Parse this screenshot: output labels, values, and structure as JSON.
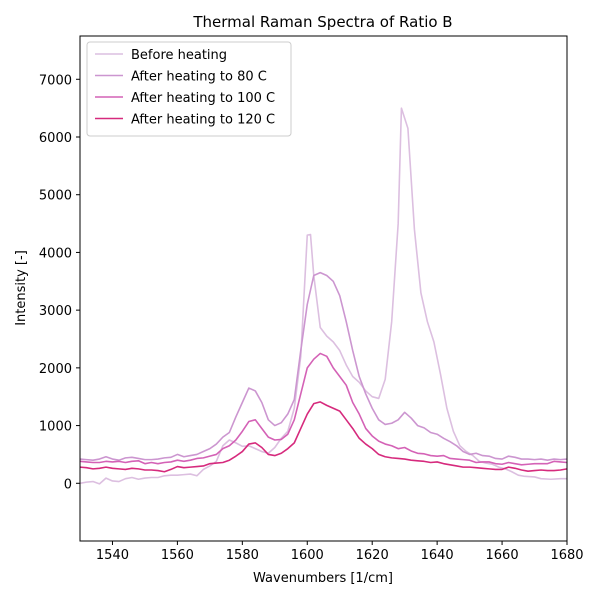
{
  "chart_data": {
    "type": "line",
    "title": "Thermal Raman Spectra of Ratio B",
    "xlabel": "Wavenumbers [1/cm]",
    "ylabel": "Intensity [-]",
    "xlim": [
      1530,
      1680
    ],
    "ylim": [
      -1000,
      7750
    ],
    "xticks": [
      1540,
      1560,
      1580,
      1600,
      1620,
      1640,
      1660,
      1680
    ],
    "yticks": [
      0,
      1000,
      2000,
      3000,
      4000,
      5000,
      6000,
      7000
    ],
    "grid": false,
    "legend_position": "top-left",
    "series": [
      {
        "name": "Before heating",
        "color": "#dcbfe0",
        "points": [
          [
            1530,
            0
          ],
          [
            1532,
            20
          ],
          [
            1534,
            30
          ],
          [
            1536,
            -10
          ],
          [
            1538,
            90
          ],
          [
            1540,
            40
          ],
          [
            1542,
            30
          ],
          [
            1544,
            80
          ],
          [
            1546,
            100
          ],
          [
            1548,
            70
          ],
          [
            1550,
            90
          ],
          [
            1552,
            100
          ],
          [
            1554,
            100
          ],
          [
            1556,
            130
          ],
          [
            1558,
            140
          ],
          [
            1560,
            140
          ],
          [
            1562,
            150
          ],
          [
            1564,
            160
          ],
          [
            1566,
            130
          ],
          [
            1568,
            240
          ],
          [
            1570,
            300
          ],
          [
            1572,
            380
          ],
          [
            1574,
            650
          ],
          [
            1576,
            750
          ],
          [
            1578,
            700
          ],
          [
            1580,
            640
          ],
          [
            1582,
            650
          ],
          [
            1584,
            600
          ],
          [
            1586,
            550
          ],
          [
            1588,
            520
          ],
          [
            1590,
            620
          ],
          [
            1592,
            780
          ],
          [
            1594,
            900
          ],
          [
            1596,
            1300
          ],
          [
            1598,
            2200
          ],
          [
            1600,
            4300
          ],
          [
            1601,
            4310
          ],
          [
            1602,
            3600
          ],
          [
            1604,
            2700
          ],
          [
            1606,
            2550
          ],
          [
            1608,
            2450
          ],
          [
            1610,
            2300
          ],
          [
            1612,
            2050
          ],
          [
            1614,
            1850
          ],
          [
            1616,
            1750
          ],
          [
            1618,
            1600
          ],
          [
            1620,
            1500
          ],
          [
            1622,
            1470
          ],
          [
            1624,
            1800
          ],
          [
            1626,
            2800
          ],
          [
            1628,
            4500
          ],
          [
            1629,
            6500
          ],
          [
            1631,
            6150
          ],
          [
            1633,
            4400
          ],
          [
            1635,
            3300
          ],
          [
            1637,
            2800
          ],
          [
            1639,
            2450
          ],
          [
            1641,
            1900
          ],
          [
            1643,
            1300
          ],
          [
            1645,
            900
          ],
          [
            1647,
            650
          ],
          [
            1649,
            550
          ],
          [
            1651,
            480
          ],
          [
            1653,
            380
          ],
          [
            1655,
            350
          ],
          [
            1657,
            330
          ],
          [
            1659,
            280
          ],
          [
            1661,
            250
          ],
          [
            1663,
            200
          ],
          [
            1665,
            140
          ],
          [
            1667,
            120
          ],
          [
            1670,
            110
          ],
          [
            1672,
            80
          ],
          [
            1675,
            70
          ],
          [
            1678,
            80
          ],
          [
            1680,
            80
          ]
        ]
      },
      {
        "name": "After heating to 80 C",
        "color": "#cc96d0",
        "points": [
          [
            1530,
            420
          ],
          [
            1532,
            410
          ],
          [
            1534,
            400
          ],
          [
            1536,
            420
          ],
          [
            1538,
            460
          ],
          [
            1540,
            420
          ],
          [
            1542,
            400
          ],
          [
            1544,
            440
          ],
          [
            1546,
            450
          ],
          [
            1548,
            430
          ],
          [
            1550,
            410
          ],
          [
            1552,
            410
          ],
          [
            1554,
            420
          ],
          [
            1556,
            440
          ],
          [
            1558,
            450
          ],
          [
            1560,
            500
          ],
          [
            1562,
            460
          ],
          [
            1564,
            480
          ],
          [
            1566,
            500
          ],
          [
            1568,
            550
          ],
          [
            1570,
            600
          ],
          [
            1572,
            680
          ],
          [
            1574,
            800
          ],
          [
            1576,
            880
          ],
          [
            1578,
            1150
          ],
          [
            1580,
            1400
          ],
          [
            1582,
            1650
          ],
          [
            1584,
            1600
          ],
          [
            1586,
            1400
          ],
          [
            1588,
            1100
          ],
          [
            1590,
            1000
          ],
          [
            1592,
            1050
          ],
          [
            1594,
            1200
          ],
          [
            1596,
            1450
          ],
          [
            1598,
            2300
          ],
          [
            1600,
            3100
          ],
          [
            1602,
            3600
          ],
          [
            1604,
            3650
          ],
          [
            1606,
            3600
          ],
          [
            1608,
            3500
          ],
          [
            1610,
            3250
          ],
          [
            1612,
            2800
          ],
          [
            1614,
            2300
          ],
          [
            1616,
            1850
          ],
          [
            1618,
            1550
          ],
          [
            1620,
            1300
          ],
          [
            1622,
            1100
          ],
          [
            1624,
            1020
          ],
          [
            1626,
            1040
          ],
          [
            1628,
            1100
          ],
          [
            1630,
            1230
          ],
          [
            1632,
            1130
          ],
          [
            1634,
            1000
          ],
          [
            1636,
            960
          ],
          [
            1638,
            880
          ],
          [
            1640,
            850
          ],
          [
            1642,
            780
          ],
          [
            1644,
            720
          ],
          [
            1646,
            650
          ],
          [
            1648,
            550
          ],
          [
            1650,
            500
          ],
          [
            1652,
            520
          ],
          [
            1654,
            480
          ],
          [
            1656,
            470
          ],
          [
            1658,
            430
          ],
          [
            1660,
            420
          ],
          [
            1662,
            470
          ],
          [
            1664,
            450
          ],
          [
            1666,
            420
          ],
          [
            1668,
            420
          ],
          [
            1670,
            410
          ],
          [
            1672,
            420
          ],
          [
            1674,
            400
          ],
          [
            1676,
            420
          ],
          [
            1678,
            410
          ],
          [
            1680,
            420
          ]
        ]
      },
      {
        "name": "After heating to 100 C",
        "color": "#d462b6",
        "points": [
          [
            1530,
            380
          ],
          [
            1532,
            370
          ],
          [
            1534,
            360
          ],
          [
            1536,
            360
          ],
          [
            1538,
            380
          ],
          [
            1540,
            370
          ],
          [
            1542,
            380
          ],
          [
            1544,
            360
          ],
          [
            1546,
            380
          ],
          [
            1548,
            390
          ],
          [
            1550,
            340
          ],
          [
            1552,
            360
          ],
          [
            1554,
            340
          ],
          [
            1556,
            360
          ],
          [
            1558,
            370
          ],
          [
            1560,
            400
          ],
          [
            1562,
            380
          ],
          [
            1564,
            400
          ],
          [
            1566,
            430
          ],
          [
            1568,
            440
          ],
          [
            1570,
            470
          ],
          [
            1572,
            500
          ],
          [
            1574,
            600
          ],
          [
            1576,
            650
          ],
          [
            1578,
            750
          ],
          [
            1580,
            900
          ],
          [
            1582,
            1070
          ],
          [
            1584,
            1100
          ],
          [
            1586,
            950
          ],
          [
            1588,
            800
          ],
          [
            1590,
            750
          ],
          [
            1592,
            760
          ],
          [
            1594,
            850
          ],
          [
            1596,
            1100
          ],
          [
            1598,
            1550
          ],
          [
            1600,
            2000
          ],
          [
            1602,
            2150
          ],
          [
            1604,
            2250
          ],
          [
            1606,
            2200
          ],
          [
            1608,
            2000
          ],
          [
            1610,
            1850
          ],
          [
            1612,
            1700
          ],
          [
            1614,
            1400
          ],
          [
            1616,
            1200
          ],
          [
            1618,
            950
          ],
          [
            1620,
            820
          ],
          [
            1622,
            730
          ],
          [
            1624,
            680
          ],
          [
            1626,
            650
          ],
          [
            1628,
            600
          ],
          [
            1630,
            620
          ],
          [
            1632,
            560
          ],
          [
            1634,
            520
          ],
          [
            1636,
            510
          ],
          [
            1638,
            480
          ],
          [
            1640,
            470
          ],
          [
            1642,
            480
          ],
          [
            1644,
            430
          ],
          [
            1646,
            420
          ],
          [
            1648,
            410
          ],
          [
            1650,
            400
          ],
          [
            1652,
            360
          ],
          [
            1654,
            370
          ],
          [
            1656,
            370
          ],
          [
            1658,
            340
          ],
          [
            1660,
            330
          ],
          [
            1662,
            360
          ],
          [
            1664,
            340
          ],
          [
            1666,
            320
          ],
          [
            1668,
            330
          ],
          [
            1670,
            340
          ],
          [
            1672,
            340
          ],
          [
            1674,
            340
          ],
          [
            1676,
            380
          ],
          [
            1678,
            370
          ],
          [
            1680,
            360
          ]
        ]
      },
      {
        "name": "After heating to 120 C",
        "color": "#d62a7d",
        "points": [
          [
            1530,
            280
          ],
          [
            1532,
            270
          ],
          [
            1534,
            250
          ],
          [
            1536,
            260
          ],
          [
            1538,
            280
          ],
          [
            1540,
            260
          ],
          [
            1542,
            250
          ],
          [
            1544,
            240
          ],
          [
            1546,
            260
          ],
          [
            1548,
            250
          ],
          [
            1550,
            230
          ],
          [
            1552,
            230
          ],
          [
            1554,
            220
          ],
          [
            1556,
            200
          ],
          [
            1558,
            240
          ],
          [
            1560,
            290
          ],
          [
            1562,
            270
          ],
          [
            1564,
            280
          ],
          [
            1566,
            290
          ],
          [
            1568,
            300
          ],
          [
            1570,
            340
          ],
          [
            1572,
            350
          ],
          [
            1574,
            360
          ],
          [
            1576,
            400
          ],
          [
            1578,
            470
          ],
          [
            1580,
            550
          ],
          [
            1582,
            680
          ],
          [
            1584,
            700
          ],
          [
            1586,
            620
          ],
          [
            1588,
            500
          ],
          [
            1590,
            480
          ],
          [
            1592,
            520
          ],
          [
            1594,
            600
          ],
          [
            1596,
            700
          ],
          [
            1598,
            950
          ],
          [
            1600,
            1200
          ],
          [
            1602,
            1380
          ],
          [
            1604,
            1410
          ],
          [
            1606,
            1350
          ],
          [
            1608,
            1300
          ],
          [
            1610,
            1250
          ],
          [
            1612,
            1100
          ],
          [
            1614,
            950
          ],
          [
            1616,
            780
          ],
          [
            1618,
            680
          ],
          [
            1620,
            600
          ],
          [
            1622,
            500
          ],
          [
            1624,
            460
          ],
          [
            1626,
            440
          ],
          [
            1628,
            430
          ],
          [
            1630,
            420
          ],
          [
            1632,
            400
          ],
          [
            1634,
            390
          ],
          [
            1636,
            380
          ],
          [
            1638,
            360
          ],
          [
            1640,
            370
          ],
          [
            1642,
            340
          ],
          [
            1644,
            320
          ],
          [
            1646,
            300
          ],
          [
            1648,
            280
          ],
          [
            1650,
            280
          ],
          [
            1652,
            270
          ],
          [
            1654,
            260
          ],
          [
            1656,
            250
          ],
          [
            1658,
            240
          ],
          [
            1660,
            240
          ],
          [
            1662,
            280
          ],
          [
            1664,
            260
          ],
          [
            1666,
            230
          ],
          [
            1668,
            210
          ],
          [
            1670,
            220
          ],
          [
            1672,
            230
          ],
          [
            1674,
            220
          ],
          [
            1676,
            220
          ],
          [
            1678,
            230
          ],
          [
            1680,
            250
          ]
        ]
      }
    ]
  }
}
